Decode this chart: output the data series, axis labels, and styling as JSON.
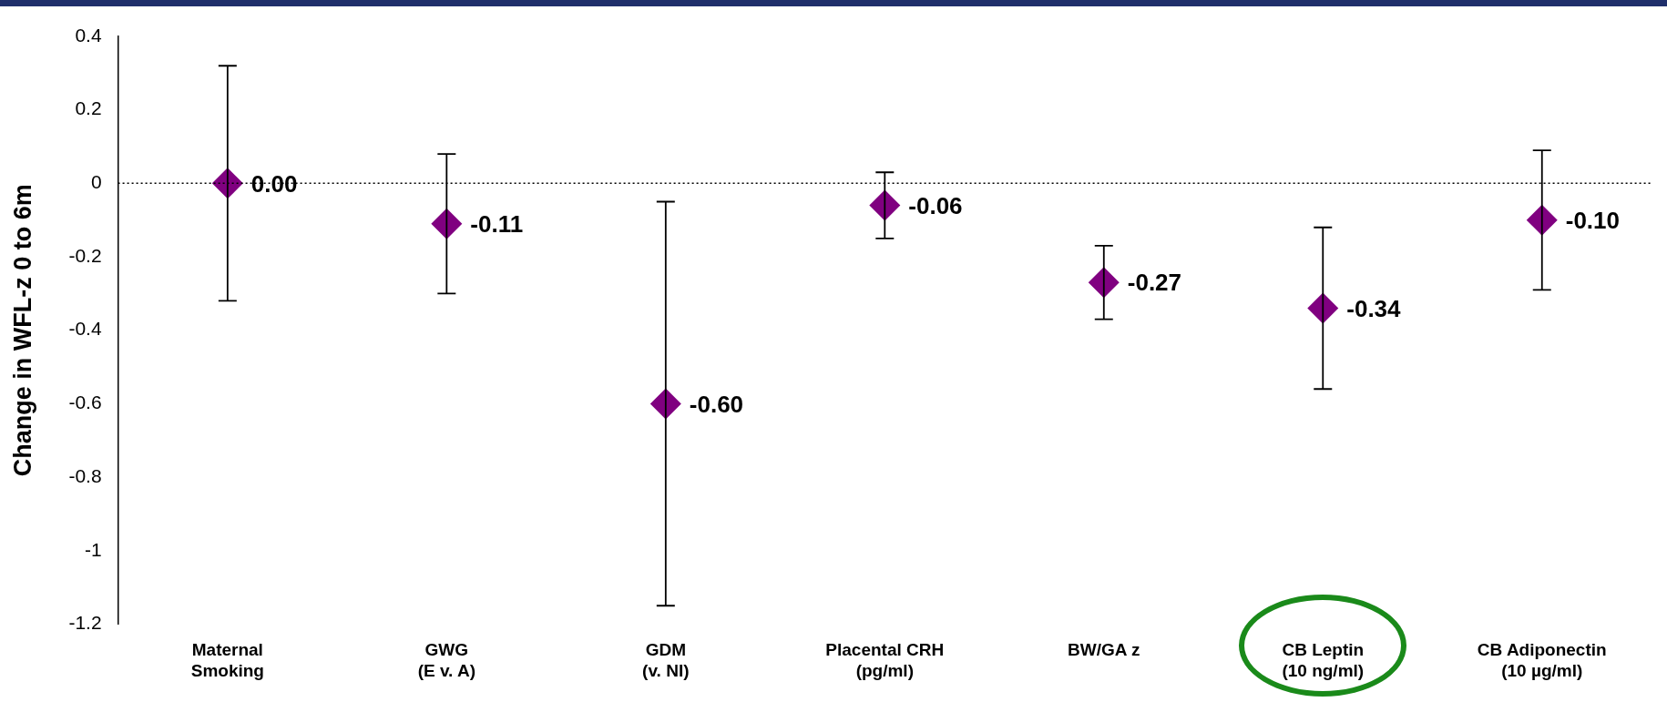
{
  "chart_data": {
    "type": "scatter",
    "ylabel": "Change in WFL-z 0 to 6m",
    "categories": [
      "Maternal\nSmoking",
      "GWG\n(E v. A)",
      "GDM\n(v. NI)",
      "Placental CRH\n(pg/ml)",
      "BW/GA z",
      "CB Leptin\n(10 ng/ml)",
      "CB Adiponectin\n(10 µg/ml)"
    ],
    "values": [
      0.0,
      -0.11,
      -0.6,
      -0.06,
      -0.27,
      -0.34,
      -0.1
    ],
    "errors": [
      [
        -0.32,
        0.32
      ],
      [
        -0.3,
        0.08
      ],
      [
        -1.15,
        -0.05
      ],
      [
        -0.15,
        0.03
      ],
      [
        -0.37,
        -0.17
      ],
      [
        -0.56,
        -0.12
      ],
      [
        -0.29,
        0.09
      ]
    ],
    "value_labels": [
      "0.00",
      "-0.11",
      "-0.60",
      "-0.06",
      "-0.27",
      "-0.34",
      "-0.10"
    ],
    "color": "#800080",
    "marker": "diamond",
    "grid": false,
    "legend": false,
    "ylim": [
      -1.2,
      0.4
    ],
    "yticks": [
      -1.2,
      -1,
      -0.8,
      -0.6,
      -0.4,
      -0.2,
      0,
      0.2,
      0.4
    ],
    "ref_lines": [
      {
        "axis": "y",
        "value": 0,
        "line_style": "dotted",
        "color": "#000000"
      }
    ]
  }
}
